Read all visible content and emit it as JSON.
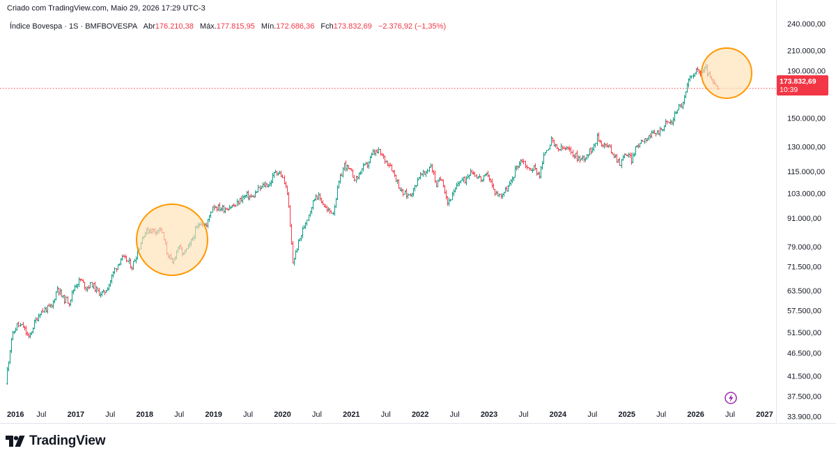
{
  "header": {
    "created_text": "Criado com TradingView.com, Maio 29, 2026 17:29 UTC-3"
  },
  "legend": {
    "symbol": "Índice Bovespa · 1S · BMFBOVESPA",
    "open_label": "Abr",
    "open_value": "176.210,38",
    "high_label": "Máx.",
    "high_value": "177.815,95",
    "low_label": "Mín.",
    "low_value": "172.686,36",
    "close_label": "Fch",
    "close_value": "173.832,69",
    "change_value": "−2.376,92 (−1,35%)"
  },
  "price_tag": {
    "price": "173.832,69",
    "countdown": "10:39"
  },
  "brand": {
    "name": "TradingView",
    "icon": "tradingview-logo-icon"
  },
  "colors": {
    "up": "#089981",
    "down": "#f23645",
    "highlight_fill": "#ffe0b2",
    "highlight_stroke": "#ff9800",
    "alert_icon": "#9c27b0"
  },
  "chart_data": {
    "type": "ohlc-bar",
    "title": "Índice Bovespa · 1S · BMFBOVESPA",
    "interval": "1S",
    "y_scale": "log",
    "ylim": [
      32800,
      252000
    ],
    "y_ticks": [
      {
        "value": 240000,
        "label": "240.000,00"
      },
      {
        "value": 210000,
        "label": "210.000,00"
      },
      {
        "value": 190000,
        "label": "190.000,00"
      },
      {
        "value": 150000,
        "label": "150.000,00"
      },
      {
        "value": 130000,
        "label": "130.000,00"
      },
      {
        "value": 115000,
        "label": "115.000,00"
      },
      {
        "value": 103000,
        "label": "103.000,00"
      },
      {
        "value": 91000,
        "label": "91.000,00"
      },
      {
        "value": 79000,
        "label": "79.000,00"
      },
      {
        "value": 71500,
        "label": "71.500,00"
      },
      {
        "value": 63500,
        "label": "63.500,00"
      },
      {
        "value": 57500,
        "label": "57.500,00"
      },
      {
        "value": 51500,
        "label": "51.500,00"
      },
      {
        "value": 46500,
        "label": "46.500,00"
      },
      {
        "value": 41500,
        "label": "41.500,00"
      },
      {
        "value": 37500,
        "label": "37.500,00"
      },
      {
        "value": 33900,
        "label": "33.900,00"
      }
    ],
    "xlim": [
      "2016-01",
      "2027-03"
    ],
    "x_ticks": [
      {
        "date": "2016-01",
        "label": "2016",
        "bold": true
      },
      {
        "date": "2016-07",
        "label": "Jul",
        "bold": false
      },
      {
        "date": "2017-01",
        "label": "2017",
        "bold": true
      },
      {
        "date": "2017-07",
        "label": "Jul",
        "bold": false
      },
      {
        "date": "2018-01",
        "label": "2018",
        "bold": true
      },
      {
        "date": "2018-07",
        "label": "Jul",
        "bold": false
      },
      {
        "date": "2019-01",
        "label": "2019",
        "bold": true
      },
      {
        "date": "2019-07",
        "label": "Jul",
        "bold": false
      },
      {
        "date": "2020-01",
        "label": "2020",
        "bold": true
      },
      {
        "date": "2020-07",
        "label": "Jul",
        "bold": false
      },
      {
        "date": "2021-01",
        "label": "2021",
        "bold": true
      },
      {
        "date": "2021-07",
        "label": "Jul",
        "bold": false
      },
      {
        "date": "2022-01",
        "label": "2022",
        "bold": true
      },
      {
        "date": "2022-07",
        "label": "Jul",
        "bold": false
      },
      {
        "date": "2023-01",
        "label": "2023",
        "bold": true
      },
      {
        "date": "2023-07",
        "label": "Jul",
        "bold": false
      },
      {
        "date": "2024-01",
        "label": "2024",
        "bold": true
      },
      {
        "date": "2024-07",
        "label": "Jul",
        "bold": false
      },
      {
        "date": "2025-01",
        "label": "2025",
        "bold": true
      },
      {
        "date": "2025-07",
        "label": "Jul",
        "bold": false
      },
      {
        "date": "2026-01",
        "label": "2026",
        "bold": true
      },
      {
        "date": "2026-07",
        "label": "Jul",
        "bold": false
      },
      {
        "date": "2027-01",
        "label": "2027",
        "bold": true
      }
    ],
    "price_line": 173832.69,
    "series": [
      {
        "date": [
          "2016-01",
          "2016-02",
          "2016-03",
          "2016-04",
          "2016-05",
          "2016-06",
          "2016-07",
          "2016-08",
          "2016-09",
          "2016-10",
          "2016-11",
          "2016-12",
          "2017-01",
          "2017-02",
          "2017-03",
          "2017-04",
          "2017-05",
          "2017-06",
          "2017-07",
          "2017-08",
          "2017-09",
          "2017-10",
          "2017-11",
          "2017-12",
          "2018-01",
          "2018-02",
          "2018-03",
          "2018-04",
          "2018-05",
          "2018-06",
          "2018-07",
          "2018-08",
          "2018-09",
          "2018-10",
          "2018-11",
          "2018-12",
          "2019-01",
          "2019-02",
          "2019-03",
          "2019-04",
          "2019-05",
          "2019-06",
          "2019-07",
          "2019-08",
          "2019-09",
          "2019-10",
          "2019-11",
          "2019-12",
          "2020-01",
          "2020-02",
          "2020-03",
          "2020-04",
          "2020-05",
          "2020-06",
          "2020-07",
          "2020-08",
          "2020-09",
          "2020-10",
          "2020-11",
          "2020-12",
          "2021-01",
          "2021-02",
          "2021-03",
          "2021-04",
          "2021-05",
          "2021-06",
          "2021-07",
          "2021-08",
          "2021-09",
          "2021-10",
          "2021-11",
          "2021-12",
          "2022-01",
          "2022-02",
          "2022-03",
          "2022-04",
          "2022-05",
          "2022-06",
          "2022-07",
          "2022-08",
          "2022-09",
          "2022-10",
          "2022-11",
          "2022-12",
          "2023-01",
          "2023-02",
          "2023-03",
          "2023-04",
          "2023-05",
          "2023-06",
          "2023-07",
          "2023-08",
          "2023-09",
          "2023-10",
          "2023-11",
          "2023-12",
          "2024-01",
          "2024-02",
          "2024-03",
          "2024-04",
          "2024-05",
          "2024-06",
          "2024-07",
          "2024-08",
          "2024-09",
          "2024-10",
          "2024-11",
          "2024-12",
          "2025-01",
          "2025-02",
          "2025-03",
          "2025-04",
          "2025-05",
          "2025-06",
          "2025-07",
          "2025-08",
          "2025-09",
          "2025-10",
          "2025-11",
          "2025-12",
          "2026-01",
          "2026-02",
          "2026-03",
          "2026-04",
          "2026-05"
        ],
        "close": [
          40500,
          50000,
          53500,
          53000,
          50000,
          54000,
          57000,
          58000,
          58500,
          64500,
          61000,
          60000,
          65000,
          67000,
          64500,
          65500,
          63000,
          62500,
          65500,
          70500,
          74500,
          74000,
          71500,
          77000,
          84500,
          86000,
          85500,
          86500,
          77000,
          72500,
          79000,
          76000,
          79500,
          85500,
          89500,
          87500,
          97000,
          96000,
          95500,
          96500,
          97000,
          100500,
          102000,
          101000,
          105000,
          107500,
          108000,
          115500,
          113000,
          104000,
          73000,
          80500,
          87500,
          95000,
          102500,
          99500,
          94500,
          94000,
          108500,
          119000,
          115000,
          110500,
          116500,
          119000,
          126000,
          126500,
          121800,
          118800,
          111000,
          103500,
          102000,
          104500,
          112500,
          113500,
          119000,
          107500,
          111500,
          98500,
          103000,
          110000,
          110000,
          116000,
          112500,
          110000,
          113500,
          104500,
          101900,
          104500,
          108500,
          118000,
          122000,
          116000,
          117000,
          113000,
          127000,
          134000,
          128000,
          129000,
          128000,
          125000,
          122000,
          124000,
          128000,
          136000,
          131500,
          130000,
          125000,
          120000,
          126000,
          122000,
          130500,
          135000,
          137000,
          138500,
          141000,
          146000,
          147000,
          158000,
          161000,
          180000,
          190000,
          188000,
          192000,
          180000,
          173800
        ]
      }
    ]
  }
}
